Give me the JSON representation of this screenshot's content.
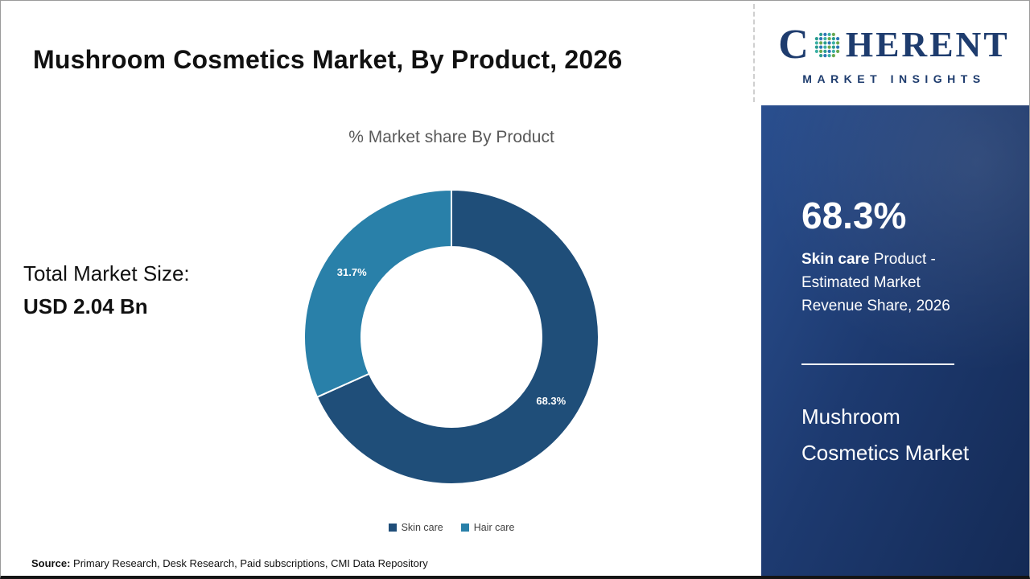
{
  "header": {
    "title": "Mushroom Cosmetics Market, By Product, 2026",
    "logo": {
      "c": "C",
      "rest": "HERENT",
      "subtitle": "MARKET INSIGHTS",
      "navy": "#1e3c6e"
    }
  },
  "main": {
    "chart_title": "% Market share By Product",
    "total_label": "Total Market Size:",
    "total_value": "USD 2.04 Bn"
  },
  "sidebar": {
    "stat_value": "68.3%",
    "desc_bold": "Skin care",
    "desc_rest": " Product - Estimated Market Revenue Share, 2026",
    "panel_title": "Mushroom Cosmetics Market"
  },
  "footer": {
    "source_label": "Source:",
    "source_text": " Primary Research, Desk Research, Paid subscriptions, CMI Data Repository"
  },
  "chart_data": {
    "type": "pie",
    "donut": true,
    "title": "% Market share By Product",
    "categories": [
      "Skin care",
      "Hair care"
    ],
    "values": [
      68.3,
      31.7
    ],
    "labels": [
      "68.3%",
      "31.7%"
    ],
    "colors": [
      "#1f4e79",
      "#2980a9"
    ],
    "start_angle_deg": 0,
    "direction": "clockwise",
    "legend_position": "bottom",
    "total_market_size": "USD 2.04 Bn"
  }
}
